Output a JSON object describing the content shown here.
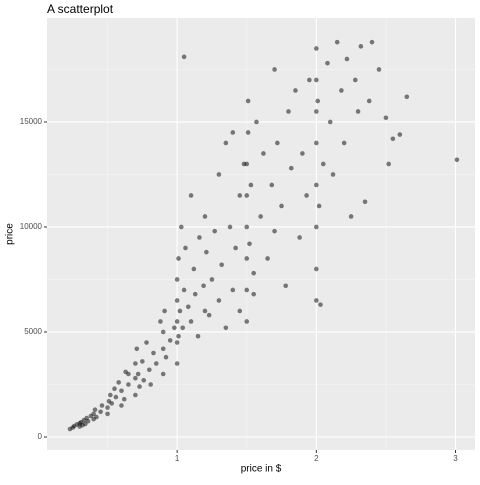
{
  "chart_data": {
    "type": "scatter",
    "title": "A scatterplot",
    "x_label": "price in $",
    "y_label": "price",
    "x": [
      0.23,
      0.25,
      0.26,
      0.28,
      0.3,
      0.3,
      0.31,
      0.32,
      0.33,
      0.34,
      0.35,
      0.36,
      0.38,
      0.4,
      0.4,
      0.41,
      0.42,
      0.45,
      0.46,
      0.5,
      0.5,
      0.51,
      0.52,
      0.53,
      0.55,
      0.56,
      0.58,
      0.6,
      0.62,
      0.63,
      0.65,
      0.7,
      0.7,
      0.7,
      0.71,
      0.72,
      0.73,
      0.75,
      0.76,
      0.78,
      0.8,
      0.81,
      0.83,
      0.85,
      0.88,
      0.9,
      0.9,
      0.9,
      0.91,
      0.92,
      0.95,
      0.98,
      1.0,
      1.0,
      1.0,
      1.0,
      1.0,
      1.01,
      1.01,
      1.02,
      1.03,
      1.04,
      1.05,
      1.06,
      1.08,
      1.1,
      1.1,
      1.12,
      1.13,
      1.15,
      1.16,
      1.19,
      1.2,
      1.2,
      1.21,
      1.23,
      1.25,
      1.27,
      1.3,
      1.3,
      1.32,
      1.35,
      1.38,
      1.4,
      1.4,
      1.42,
      1.45,
      1.45,
      1.48,
      1.5,
      1.5,
      1.5,
      1.5,
      1.5,
      1.5,
      1.51,
      1.51,
      1.52,
      1.53,
      1.55,
      1.57,
      1.6,
      1.62,
      1.65,
      1.68,
      1.7,
      1.7,
      1.72,
      1.75,
      1.78,
      1.8,
      1.82,
      1.85,
      1.88,
      1.9,
      1.93,
      1.95,
      2.0,
      2.0,
      2.0,
      2.0,
      2.0,
      2.0,
      2.0,
      2.0,
      2.01,
      2.02,
      2.03,
      2.05,
      2.08,
      2.1,
      2.12,
      2.15,
      2.18,
      2.2,
      2.22,
      2.25,
      2.28,
      2.3,
      2.32,
      2.35,
      2.38,
      2.4,
      2.45,
      2.5,
      2.52,
      2.55,
      2.6,
      2.65,
      3.01,
      1.05,
      1.35,
      1.55,
      0.6,
      0.65
    ],
    "values": [
      380,
      450,
      520,
      600,
      500,
      650,
      700,
      560,
      800,
      620,
      900,
      750,
      1000,
      850,
      1100,
      1300,
      950,
      1200,
      1500,
      1100,
      1400,
      1700,
      2000,
      1600,
      2300,
      1900,
      2600,
      2200,
      1800,
      3100,
      2500,
      2000,
      2800,
      3500,
      4200,
      3000,
      2400,
      3600,
      2700,
      4500,
      3200,
      2500,
      4000,
      3500,
      5500,
      3000,
      4200,
      5000,
      6000,
      3800,
      4600,
      5200,
      3500,
      4500,
      5500,
      6500,
      7500,
      8500,
      4800,
      6000,
      10000,
      5200,
      7000,
      9000,
      6200,
      5500,
      11500,
      8000,
      6800,
      4800,
      9500,
      7200,
      6000,
      10500,
      8800,
      5800,
      7500,
      9800,
      6500,
      12500,
      8200,
      5200,
      10000,
      7000,
      14500,
      9000,
      6000,
      11500,
      13000,
      5500,
      7000,
      8500,
      10000,
      11500,
      13000,
      14500,
      16000,
      9200,
      12000,
      7800,
      15000,
      10500,
      13500,
      8500,
      12000,
      17500,
      9800,
      14000,
      11000,
      7200,
      15500,
      12800,
      16500,
      9500,
      13500,
      11500,
      17000,
      6500,
      8000,
      10000,
      12000,
      14000,
      15500,
      17000,
      18500,
      16000,
      11000,
      6300,
      13000,
      17800,
      15000,
      12500,
      18800,
      16500,
      14000,
      18000,
      10500,
      17000,
      15500,
      18600,
      11200,
      16000,
      18800,
      17500,
      15200,
      13000,
      14200,
      14400,
      16200,
      13200,
      18100,
      14000,
      6800,
      1500,
      3000
    ],
    "color": "#000000",
    "xlim": [
      0.065,
      3.14
    ],
    "ylim": [
      -619,
      19950
    ],
    "xticks": [
      1,
      2,
      3
    ],
    "yticks": [
      0,
      5000,
      10000,
      15000
    ],
    "x_minor_grid": [
      0.5,
      1.5,
      2.5
    ],
    "y_minor_grid": [
      2500,
      7500,
      12500,
      17500
    ],
    "grid": true
  }
}
